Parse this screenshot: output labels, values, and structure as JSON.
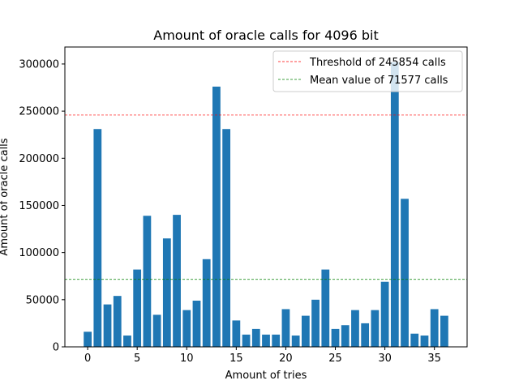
{
  "chart_data": {
    "type": "bar",
    "title": "Amount of oracle calls for 4096 bit",
    "xlabel": "Amount of tries",
    "ylabel": "Amount of oracle calls",
    "x": [
      0,
      1,
      2,
      3,
      4,
      5,
      6,
      7,
      8,
      9,
      10,
      11,
      12,
      13,
      14,
      15,
      16,
      17,
      18,
      19,
      20,
      21,
      22,
      23,
      24,
      25,
      26,
      27,
      28,
      29,
      30,
      31,
      32,
      33,
      34,
      35,
      36
    ],
    "values": [
      16000,
      231000,
      45000,
      54000,
      12000,
      82000,
      139000,
      34000,
      115000,
      140000,
      39000,
      49000,
      93000,
      276000,
      231000,
      28000,
      13000,
      19000,
      13000,
      13000,
      40000,
      12000,
      33000,
      50000,
      82000,
      19000,
      23000,
      39000,
      25000,
      39000,
      69000,
      302000,
      157000,
      14000,
      12000,
      40000,
      33000
    ],
    "xticks": [
      0,
      5,
      10,
      15,
      20,
      25,
      30,
      35
    ],
    "yticks": [
      0,
      50000,
      100000,
      150000,
      200000,
      250000,
      300000
    ],
    "xlim": [
      -2.3,
      38.3
    ],
    "ylim": [
      0,
      318000
    ],
    "bar_color": "#1f77b4",
    "grid": false,
    "legend_position": "top-right",
    "reference_lines": [
      {
        "label": "Threshold of 245854 calls",
        "value": 245854,
        "color": "#ff0000",
        "style": "dashed"
      },
      {
        "label": "Mean value of 71577 calls",
        "value": 71577,
        "color": "#008000",
        "style": "dashed"
      }
    ]
  }
}
